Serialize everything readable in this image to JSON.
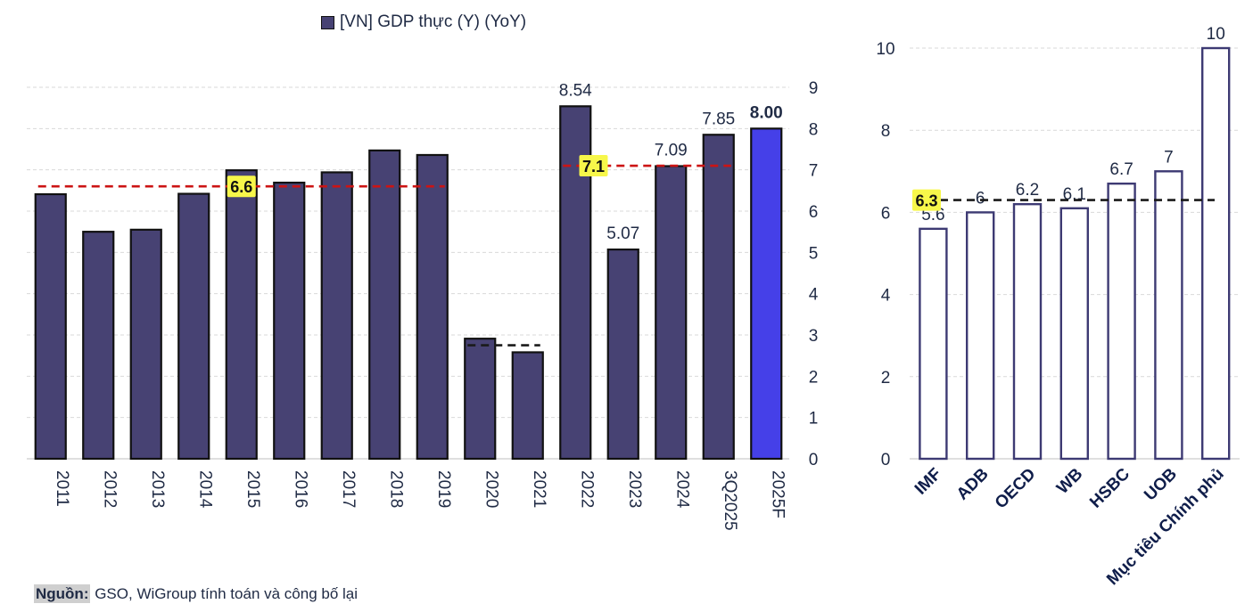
{
  "legend_label": "[VN] GDP thực (Y) (YoY)",
  "source": {
    "label": "Nguồn:",
    "text": " GSO, WiGroup tính toán và công bố lại"
  },
  "colors": {
    "bar": "#474273",
    "forecast_bar": "#4540e8",
    "bar_edge": "#111111",
    "avg_line_red": "#cc1414",
    "avg_line_dark": "#1a1a1a",
    "highlight": "#f7f74a",
    "outline_bar": "#3d3a73",
    "text": "#1f2a44",
    "grid": "#d9d9d9"
  },
  "chart_data": [
    {
      "type": "bar",
      "title": "[VN] GDP thực (Y) (YoY)",
      "categories": [
        "2011",
        "2012",
        "2013",
        "2014",
        "2015",
        "2016",
        "2017",
        "2018",
        "2019",
        "2020",
        "2021",
        "2022",
        "2023",
        "2024",
        "3Q2025",
        "2025F"
      ],
      "values": [
        6.41,
        5.5,
        5.55,
        6.42,
        6.99,
        6.69,
        6.94,
        7.47,
        7.36,
        2.91,
        2.58,
        8.54,
        5.07,
        7.09,
        7.85,
        8.0
      ],
      "data_labels": [
        {
          "index": 11,
          "text": "8.54"
        },
        {
          "index": 12,
          "text": "5.07"
        },
        {
          "index": 13,
          "text": "7.09"
        },
        {
          "index": 14,
          "text": "7.85"
        },
        {
          "index": 15,
          "text": "8.00"
        }
      ],
      "ylim": [
        0,
        9
      ],
      "yticks": [
        "0",
        "1",
        "2",
        "3",
        "4",
        "5",
        "6",
        "7",
        "8",
        "9"
      ],
      "axis_side": "right",
      "grid": true,
      "reference_lines": [
        {
          "from": 0,
          "to": 8,
          "value": 6.6,
          "label": "6.6",
          "style": "red-dashed"
        },
        {
          "from": 9,
          "to": 10,
          "value": 2.75,
          "label": "",
          "style": "dark-dashed"
        },
        {
          "from": 11,
          "to": 14,
          "value": 7.1,
          "label": "7.1",
          "style": "red-dashed"
        }
      ]
    },
    {
      "type": "bar",
      "categories": [
        "IMF",
        "ADB",
        "OECD",
        "WB",
        "HSBC",
        "UOB",
        "Mục tiêu Chính phủ"
      ],
      "values": [
        5.6,
        6,
        6.2,
        6.1,
        6.7,
        7,
        10
      ],
      "data_labels": [
        "5.6",
        "6",
        "6.2",
        "6.1",
        "6.7",
        "7",
        "10"
      ],
      "ylim": [
        0,
        10
      ],
      "yticks": [
        "0",
        "2",
        "4",
        "6",
        "8",
        "10"
      ],
      "axis_side": "left",
      "grid": true,
      "style": "outline",
      "reference_lines": [
        {
          "value": 6.3,
          "label": "6.3",
          "style": "dark-dashed"
        }
      ]
    }
  ]
}
